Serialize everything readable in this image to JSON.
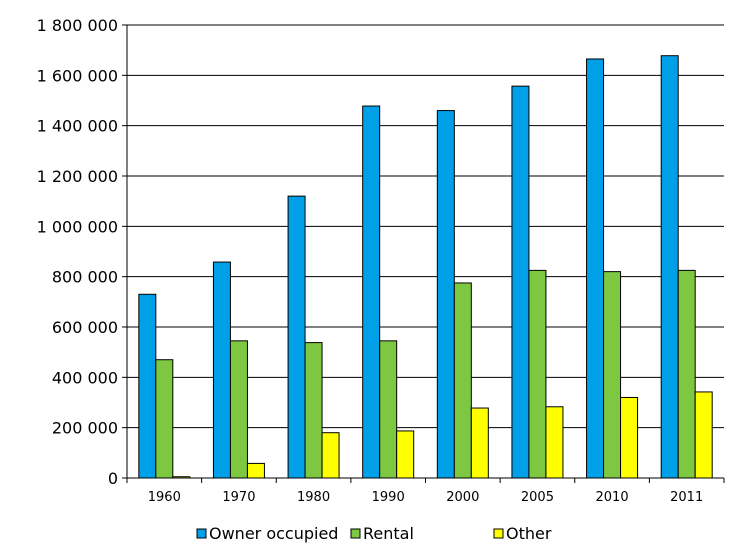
{
  "chart_data": {
    "type": "bar",
    "title": "",
    "xlabel": "",
    "ylabel": "",
    "categories": [
      "1960",
      "1970",
      "1980",
      "1990",
      "2000",
      "2005",
      "2010",
      "2011"
    ],
    "series": [
      {
        "name": "Owner occupied",
        "color": "#00a0e8",
        "values": [
          730000,
          858000,
          1120000,
          1478000,
          1460000,
          1557000,
          1665000,
          1678000
        ]
      },
      {
        "name": "Rental",
        "color": "#7dc840",
        "values": [
          470000,
          545000,
          538000,
          545000,
          775000,
          825000,
          820000,
          825000
        ]
      },
      {
        "name": "Other",
        "color": "#ffff00",
        "values": [
          5000,
          58000,
          180000,
          187000,
          278000,
          283000,
          320000,
          342000
        ]
      }
    ],
    "ylim": [
      0,
      1800000
    ],
    "yticks": [
      {
        "value": 0,
        "label": "0"
      },
      {
        "value": 200000,
        "label": "200 000"
      },
      {
        "value": 400000,
        "label": "400 000"
      },
      {
        "value": 600000,
        "label": "600 000"
      },
      {
        "value": 800000,
        "label": "800 000"
      },
      {
        "value": 1000000,
        "label": "1 000 000"
      },
      {
        "value": 1200000,
        "label": "1 200 000"
      },
      {
        "value": 1400000,
        "label": "1 400 000"
      },
      {
        "value": 1600000,
        "label": "1 600 000"
      },
      {
        "value": 1800000,
        "label": "1 800 000"
      }
    ],
    "grid": true,
    "legend_position": "bottom"
  }
}
